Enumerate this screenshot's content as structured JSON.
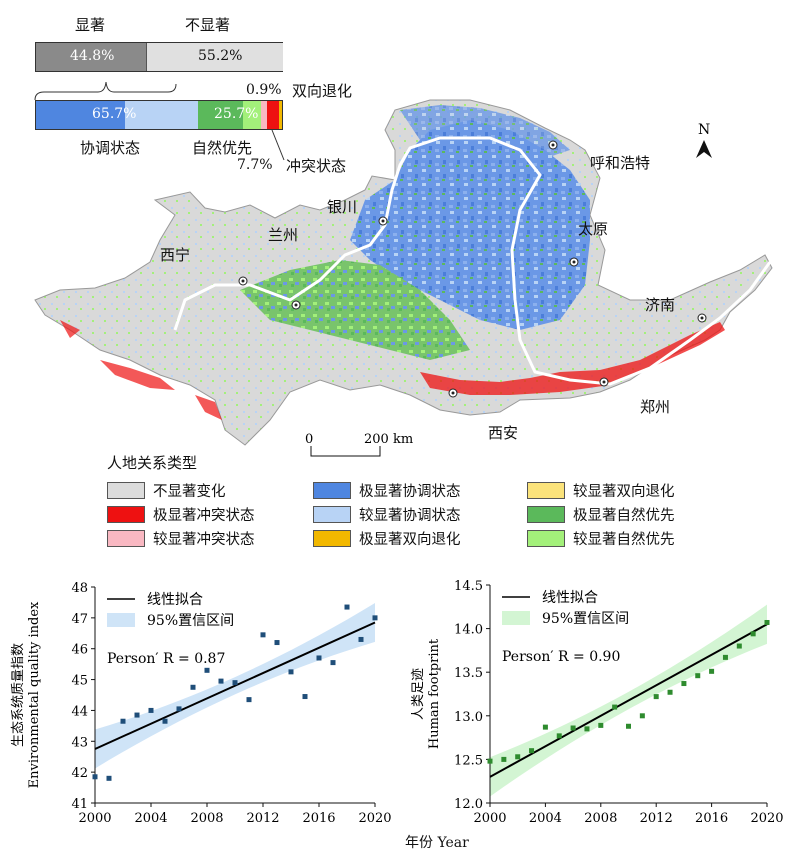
{
  "significance_bar": {
    "significant_label": "显著",
    "not_significant_label": "不显著",
    "significant_pct": "44.8%",
    "not_significant_pct": "55.2%",
    "significant_value": 44.8,
    "not_significant_value": 55.2
  },
  "type_bar": {
    "segments": [
      {
        "name": "协调状态",
        "value": 65.7,
        "pct": "65.7%"
      },
      {
        "name": "自然优先",
        "value": 25.7,
        "pct": "25.7%"
      },
      {
        "name": "冲突状态",
        "value": 7.7,
        "pct": "7.7%"
      },
      {
        "name": "双向退化",
        "value": 0.9,
        "pct": "0.9%"
      }
    ]
  },
  "map": {
    "cities": [
      "呼和浩特",
      "银川",
      "太原",
      "兰州",
      "西宁",
      "济南",
      "郑州",
      "西安"
    ],
    "north_label": "N",
    "scale": {
      "zero": "0",
      "distance": "200 km"
    }
  },
  "legend": {
    "title": "人地关系类型",
    "items": [
      {
        "label": "不显著变化",
        "color": "#dcdcdc"
      },
      {
        "label": "极显著冲突状态",
        "color": "#ee1111"
      },
      {
        "label": "较显著冲突状态",
        "color": "#f9b8c2"
      },
      {
        "label": "极显著协调状态",
        "color": "#4f86e0"
      },
      {
        "label": "较显著协调状态",
        "color": "#b8d3f5"
      },
      {
        "label": "极显著双向退化",
        "color": "#f2b800"
      },
      {
        "label": "较显著双向退化",
        "color": "#fbe37b"
      },
      {
        "label": "极显著自然优先",
        "color": "#5bb95b"
      },
      {
        "label": "较显著自然优先",
        "color": "#a3f07a"
      }
    ]
  },
  "chart_data": [
    {
      "type": "scatter",
      "ylabel_cn": "生态系统质量指数",
      "ylabel_en": "Environmental quality index",
      "xlabel": "年份 Year",
      "xlim": [
        2000,
        2020
      ],
      "ylim": [
        41,
        48
      ],
      "xticks": [
        2000,
        2004,
        2008,
        2012,
        2016,
        2020
      ],
      "yticks": [
        41,
        42,
        43,
        44,
        45,
        46,
        47,
        48
      ],
      "legend": [
        "线性拟合",
        "95%置信区间"
      ],
      "annotation": "Person′ R = 0.87",
      "color": "#1f4e79",
      "band_color": "#cfe4f7",
      "x": [
        2000,
        2001,
        2002,
        2003,
        2004,
        2005,
        2006,
        2007,
        2008,
        2009,
        2010,
        2011,
        2012,
        2013,
        2014,
        2015,
        2016,
        2017,
        2018,
        2019,
        2020
      ],
      "y": [
        41.85,
        41.8,
        43.65,
        43.85,
        44.0,
        43.65,
        44.05,
        44.75,
        45.3,
        44.95,
        44.9,
        44.35,
        46.45,
        46.2,
        45.25,
        44.45,
        45.7,
        45.55,
        47.35,
        46.3,
        47.0
      ],
      "fit": [
        42.75,
        46.85
      ]
    },
    {
      "type": "scatter",
      "ylabel_cn": "人类足迹",
      "ylabel_en": "Human footprint",
      "xlabel": "年份 Year",
      "xlim": [
        2000,
        2020
      ],
      "ylim": [
        12.0,
        14.5
      ],
      "xticks": [
        2000,
        2004,
        2008,
        2012,
        2016,
        2020
      ],
      "yticks": [
        12.0,
        12.5,
        13.0,
        13.5,
        14.0,
        14.5
      ],
      "legend": [
        "线性拟合",
        "95%置信区间"
      ],
      "annotation": "Person′ R = 0.90",
      "color": "#2e8b2e",
      "band_color": "#d3f5d3",
      "x": [
        2000,
        2001,
        2002,
        2003,
        2004,
        2005,
        2006,
        2007,
        2008,
        2009,
        2010,
        2011,
        2012,
        2013,
        2014,
        2015,
        2016,
        2017,
        2018,
        2019,
        2020
      ],
      "y": [
        12.48,
        12.5,
        12.53,
        12.6,
        12.87,
        12.77,
        12.86,
        12.85,
        12.89,
        13.1,
        12.88,
        13.0,
        13.22,
        13.27,
        13.37,
        13.46,
        13.51,
        13.67,
        13.8,
        13.94,
        14.07
      ],
      "fit": [
        12.3,
        14.05
      ]
    }
  ]
}
